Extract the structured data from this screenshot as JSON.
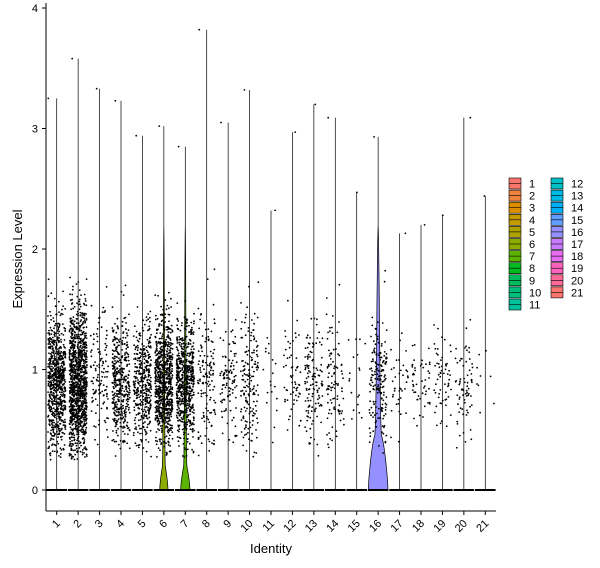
{
  "chart_data": {
    "type": "violin",
    "xlabel": "Identity",
    "ylabel": "Expression Level",
    "ylim": [
      -0.18,
      4.05
    ],
    "yticks": [
      0,
      1,
      2,
      3,
      4
    ],
    "grid": false,
    "legend_position": "right",
    "categories": [
      "1",
      "2",
      "3",
      "4",
      "5",
      "6",
      "7",
      "8",
      "9",
      "10",
      "11",
      "12",
      "13",
      "14",
      "15",
      "16",
      "17",
      "18",
      "19",
      "20",
      "21"
    ],
    "colors": [
      "#F8766D",
      "#EC823C",
      "#DB8E00",
      "#C49A00",
      "#AFA200",
      "#8DAB00",
      "#5BB300",
      "#00B81F",
      "#00BD5C",
      "#00BF7D",
      "#00C19A",
      "#00BFC4",
      "#00B9E3",
      "#00B0F6",
      "#619CFF",
      "#9590FF",
      "#C77CFF",
      "#E76BF3",
      "#FF62BC",
      "#FF6A98",
      "#F8766D"
    ],
    "max_values": [
      3.25,
      3.58,
      3.33,
      3.23,
      2.94,
      3.02,
      2.85,
      3.82,
      3.05,
      3.32,
      2.32,
      2.97,
      3.2,
      3.09,
      2.47,
      2.93,
      2.13,
      2.2,
      2.28,
      3.09,
      2.44
    ],
    "violin_widths": [
      0.02,
      0.03,
      0.01,
      0.02,
      0.03,
      0.4,
      0.45,
      0.01,
      0.01,
      0.02,
      0.01,
      0.01,
      0.01,
      0.01,
      0.01,
      0.95,
      0.01,
      0.01,
      0.01,
      0.01,
      0.01
    ],
    "violin_bulge": [
      0,
      0,
      0,
      0,
      0,
      0.2,
      0.2,
      0,
      0,
      0,
      0,
      0,
      0,
      0,
      0,
      0.45,
      0,
      0,
      0,
      0,
      0
    ],
    "nonzero_points": [
      750,
      1150,
      120,
      420,
      380,
      780,
      650,
      140,
      100,
      170,
      20,
      60,
      130,
      100,
      20,
      180,
      40,
      50,
      60,
      70,
      10
    ]
  },
  "legend": {
    "col1": [
      "1",
      "2",
      "3",
      "4",
      "5",
      "6",
      "7",
      "8",
      "9",
      "10",
      "11"
    ],
    "col2": [
      "12",
      "13",
      "14",
      "15",
      "16",
      "17",
      "18",
      "19",
      "20",
      "21"
    ]
  }
}
